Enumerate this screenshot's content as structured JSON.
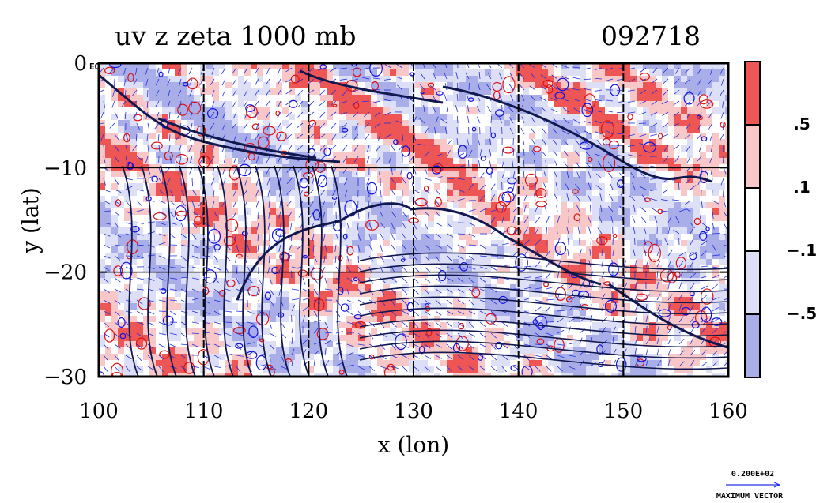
{
  "chart_data": {
    "type": "heatmap",
    "title": "uv z zeta 1000 mb",
    "date_label": "092718",
    "xlabel": "x (lon)",
    "ylabel": "y (lat)",
    "xlim": [
      100,
      160
    ],
    "ylim": [
      -30,
      0
    ],
    "x_ticks": [
      100,
      110,
      120,
      130,
      140,
      150,
      160
    ],
    "x_tick_labels": [
      "100",
      "110",
      "120",
      "130",
      "140",
      "150",
      "160"
    ],
    "y_ticks": [
      0,
      -10,
      -20,
      -30
    ],
    "y_tick_labels": [
      "0",
      "−10",
      "−20",
      "−30"
    ],
    "corner_label": "EQ",
    "grid": true,
    "fields": {
      "shaded": "zeta (vorticity)",
      "contours": "z (geopotential height)",
      "vectors": "uv (wind)"
    },
    "colorbar": {
      "levels": [
        {
          "label": "",
          "color": "#ee5555"
        },
        {
          "label": ".5",
          "color": "#f8c8c8"
        },
        {
          "label": ".1",
          "color": "#ffffff"
        },
        {
          "label": "−.1",
          "color": "#dcdff6"
        },
        {
          "label": "−.5",
          "color": "#a9aee8"
        }
      ]
    },
    "reference_vector": {
      "value_label": "0.200E+02",
      "caption": "MAXIMUM VECTOR"
    },
    "colors": {
      "positive_contour": "#e01010",
      "negative_contour": "#1010e0",
      "height_contour": "#101850",
      "vector": "#2030e0"
    }
  }
}
